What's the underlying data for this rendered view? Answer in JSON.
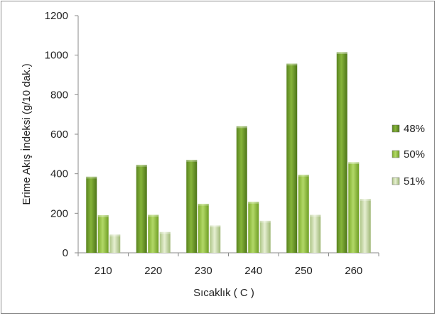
{
  "chart_data": {
    "type": "bar",
    "xlabel": "Sıcaklık ( C )",
    "ylabel": "Erime Akış İndeksi (g/10 dak.)",
    "categories": [
      "210",
      "220",
      "230",
      "240",
      "250",
      "260"
    ],
    "ylim": [
      0,
      1200
    ],
    "yticks": [
      "0",
      "200",
      "400",
      "600",
      "800",
      "1000",
      "1200"
    ],
    "legend_position": "right",
    "series": [
      {
        "name": "48%",
        "values": [
          385,
          445,
          470,
          640,
          957,
          1015
        ],
        "color": "#6f9e2b"
      },
      {
        "name": "50%",
        "values": [
          190,
          192,
          248,
          258,
          395,
          458
        ],
        "color": "#94c33f"
      },
      {
        "name": "51%",
        "values": [
          92,
          105,
          138,
          162,
          192,
          272
        ],
        "color": "#c9dba4"
      }
    ]
  }
}
